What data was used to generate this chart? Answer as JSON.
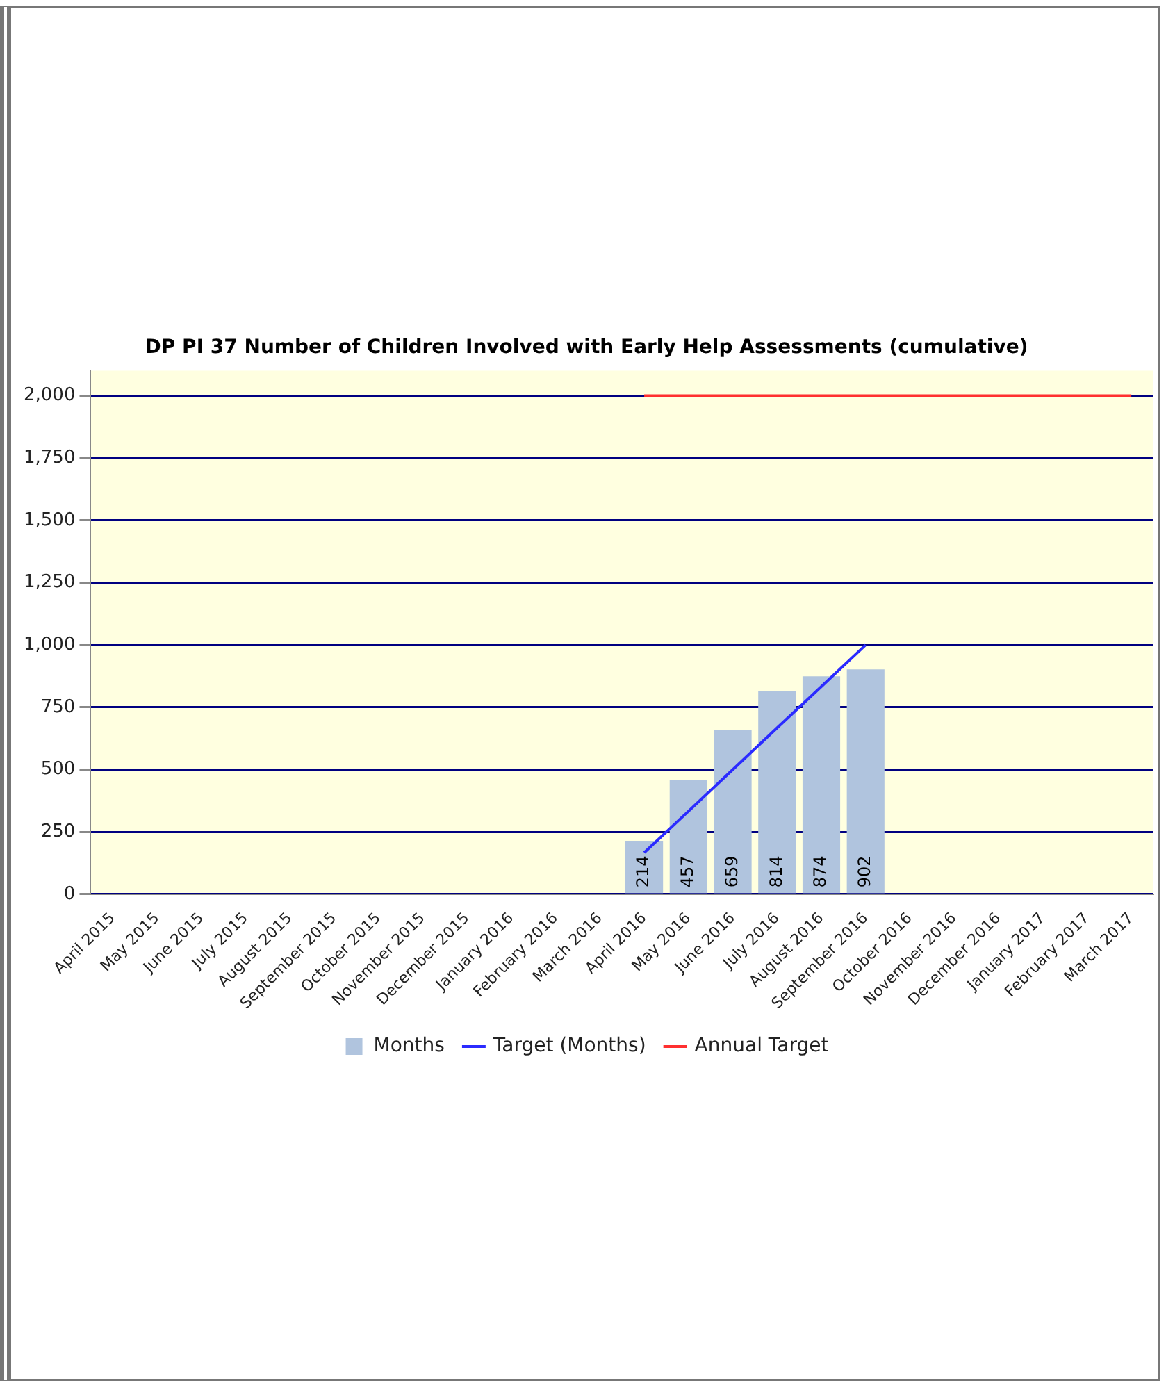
{
  "chart_data": {
    "type": "bar",
    "title": "DP PI 37 Number of Children Involved with Early Help Assessments (cumulative)",
    "categories": [
      "April 2015",
      "May 2015",
      "June 2015",
      "July 2015",
      "August 2015",
      "September 2015",
      "October 2015",
      "November 2015",
      "December 2015",
      "January 2016",
      "February 2016",
      "March 2016",
      "April 2016",
      "May 2016",
      "June 2016",
      "July 2016",
      "August 2016",
      "September 2016",
      "October 2016",
      "November 2016",
      "December 2016",
      "January 2017",
      "February 2017",
      "March 2017"
    ],
    "series": [
      {
        "name": "Months",
        "color": "#b0c4de",
        "values": [
          null,
          null,
          null,
          null,
          null,
          null,
          null,
          null,
          null,
          null,
          null,
          null,
          214,
          457,
          659,
          814,
          874,
          902,
          null,
          null,
          null,
          null,
          null,
          null
        ],
        "value_labels": [
          null,
          null,
          null,
          null,
          null,
          null,
          null,
          null,
          null,
          null,
          null,
          null,
          "214",
          "457",
          "659",
          "814",
          "874",
          "902",
          null,
          null,
          null,
          null,
          null,
          null
        ]
      },
      {
        "name": "Target (Months)",
        "type": "line",
        "color": "#2b2bff",
        "values": [
          null,
          null,
          null,
          null,
          null,
          null,
          null,
          null,
          null,
          null,
          null,
          null,
          167,
          333,
          500,
          667,
          833,
          1000,
          null,
          null,
          null,
          null,
          null,
          null
        ]
      },
      {
        "name": "Annual Target",
        "type": "line",
        "color": "#ff3030",
        "values": [
          null,
          null,
          null,
          null,
          null,
          null,
          null,
          null,
          null,
          null,
          null,
          null,
          2000,
          2000,
          2000,
          2000,
          2000,
          2000,
          2000,
          2000,
          2000,
          2000,
          2000,
          2000
        ]
      }
    ],
    "ylim": [
      0,
      2100
    ],
    "yticks": [
      0,
      250,
      500,
      750,
      {
        "value": 1000,
        "label": "1,000"
      },
      {
        "value": 1250,
        "label": "1,250"
      },
      {
        "value": 1500,
        "label": "1,500"
      },
      {
        "value": 1750,
        "label": "1,750"
      },
      {
        "value": 2000,
        "label": "2,000"
      }
    ],
    "grid": "y",
    "legend": "bottom",
    "marker": "none",
    "line_style": "solid"
  }
}
